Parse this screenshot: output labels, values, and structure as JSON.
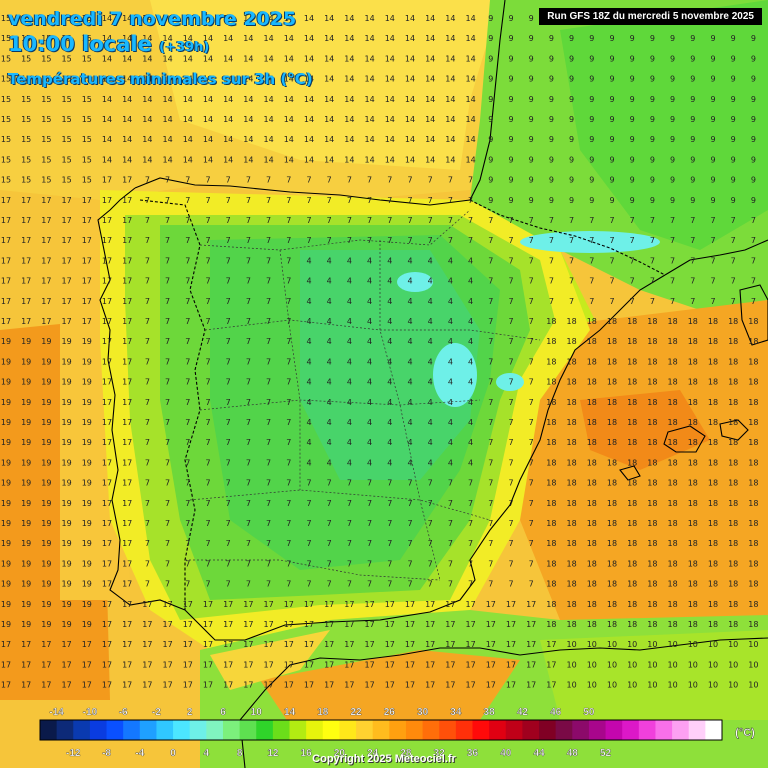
{
  "header": {
    "date": "vendredi 7 novembre 2025",
    "time": "10:00 locale",
    "offset": "(+39h)",
    "subtitle": "Températures minimales sur 3h (°C)",
    "run": "Run GFS 18Z du mercredi 5 novembre 2025"
  },
  "legend": {
    "unit": "(°C)",
    "top_labels": [
      "-14",
      "-10",
      "-6",
      "-2",
      "2",
      "6",
      "10",
      "14",
      "18",
      "22",
      "26",
      "30",
      "34",
      "38",
      "42",
      "46",
      "50"
    ],
    "bottom_labels": [
      "-12",
      "-8",
      "-4",
      "0",
      "4",
      "8",
      "12",
      "16",
      "20",
      "24",
      "28",
      "32",
      "36",
      "40",
      "44",
      "48",
      "52"
    ],
    "colors": [
      "#0a1a4a",
      "#0d2a78",
      "#0a3ab0",
      "#0a3ce0",
      "#0a50ff",
      "#1478ff",
      "#1fa0ff",
      "#30c8ff",
      "#4ce6ff",
      "#6ef0e8",
      "#80f4c0",
      "#7cf07c",
      "#5ee050",
      "#2fd42a",
      "#6bde1a",
      "#b2ec12",
      "#e6f40c",
      "#ffff10",
      "#ffe81a",
      "#ffd230",
      "#ffbc1e",
      "#ffa010",
      "#ff8a0c",
      "#ff6e0a",
      "#ff500a",
      "#ff300a",
      "#ff0a0a",
      "#e00012",
      "#c00018",
      "#a0001e",
      "#800024",
      "#7a0a46",
      "#8c0a6a",
      "#a8068c",
      "#c406ae",
      "#dc18c8",
      "#f040dc",
      "#f870ea",
      "#fca0f2",
      "#ffd0fa",
      "#ffffff"
    ]
  },
  "copyright": "Copyright 2025 Meteociel.fr"
}
